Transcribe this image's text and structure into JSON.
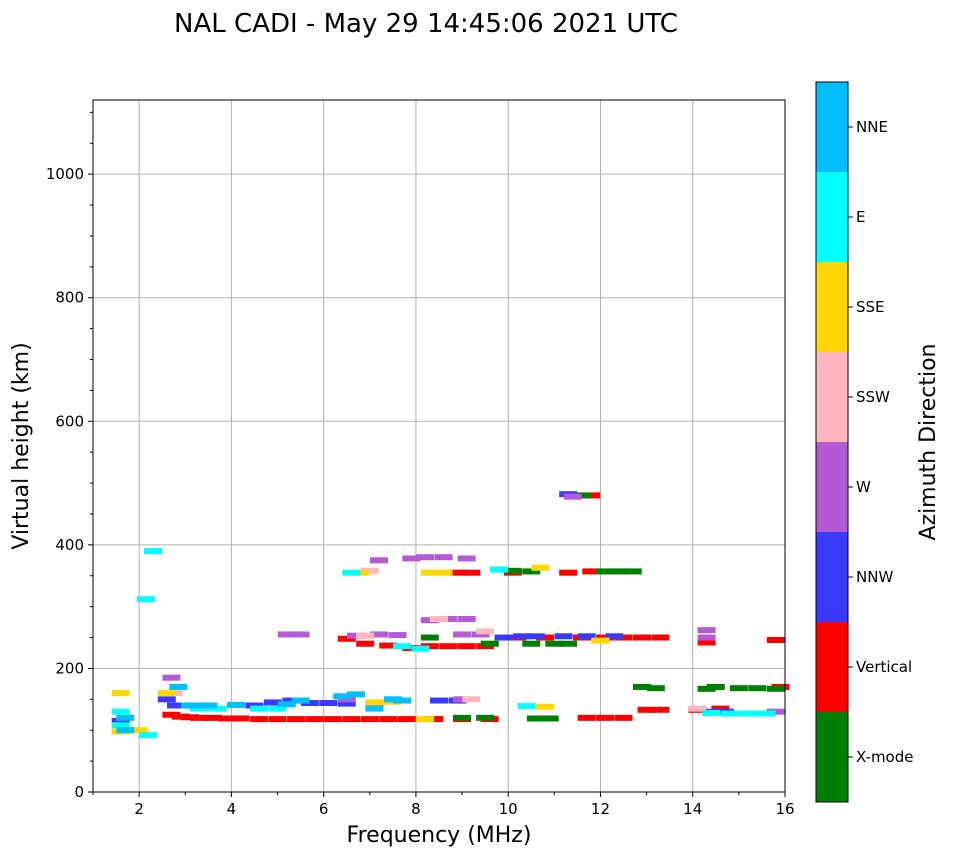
{
  "chart_data": {
    "type": "scatter",
    "title": "NAL CADI - May 29 14:45:06 2021 UTC",
    "xlabel": "Frequency (MHz)",
    "ylabel": "Virtual height (km)",
    "xlim": [
      1,
      16
    ],
    "ylim": [
      0,
      1120
    ],
    "xticks": [
      2,
      4,
      6,
      8,
      10,
      12,
      14,
      16
    ],
    "yticks": [
      0,
      200,
      400,
      600,
      800,
      1000
    ],
    "grid": true,
    "colorbar": {
      "label": "Azimuth Direction",
      "categories": [
        {
          "name": "X-mode",
          "color": "#008000"
        },
        {
          "name": "Vertical",
          "color": "#ff0000"
        },
        {
          "name": "NNW",
          "color": "#3a3aff"
        },
        {
          "name": "W",
          "color": "#b55ad6"
        },
        {
          "name": "SSW",
          "color": "#ffb6c1"
        },
        {
          "name": "SSE",
          "color": "#ffd700"
        },
        {
          "name": "E",
          "color": "#00ffff"
        },
        {
          "name": "NNE",
          "color": "#00bfff"
        }
      ]
    },
    "series": [
      {
        "name": "Vertical",
        "points": [
          [
            2.7,
            125
          ],
          [
            2.9,
            122
          ],
          [
            3.1,
            121
          ],
          [
            3.3,
            120
          ],
          [
            3.6,
            120
          ],
          [
            3.9,
            119
          ],
          [
            4.2,
            119
          ],
          [
            4.6,
            118
          ],
          [
            5.0,
            118
          ],
          [
            5.4,
            118
          ],
          [
            5.8,
            118
          ],
          [
            6.2,
            118
          ],
          [
            6.6,
            118
          ],
          [
            7.0,
            118
          ],
          [
            7.4,
            118
          ],
          [
            7.8,
            118
          ],
          [
            8.4,
            118
          ],
          [
            9.0,
            118
          ],
          [
            9.6,
            118
          ],
          [
            11.7,
            120
          ],
          [
            12.1,
            120
          ],
          [
            12.5,
            120
          ],
          [
            13.0,
            133
          ],
          [
            13.3,
            133
          ],
          [
            14.1,
            133
          ],
          [
            14.6,
            135
          ],
          [
            15.9,
            170
          ],
          [
            6.5,
            248
          ],
          [
            6.9,
            240
          ],
          [
            7.4,
            237
          ],
          [
            7.9,
            233
          ],
          [
            8.3,
            236
          ],
          [
            8.7,
            236
          ],
          [
            9.1,
            236
          ],
          [
            9.5,
            236
          ],
          [
            10.2,
            250
          ],
          [
            10.8,
            250
          ],
          [
            11.6,
            250
          ],
          [
            12.1,
            250
          ],
          [
            12.5,
            250
          ],
          [
            12.9,
            250
          ],
          [
            13.3,
            250
          ],
          [
            14.3,
            242
          ],
          [
            15.8,
            246
          ],
          [
            8.9,
            355
          ],
          [
            9.2,
            355
          ],
          [
            10.1,
            355
          ],
          [
            11.3,
            355
          ],
          [
            11.8,
            357
          ],
          [
            11.8,
            480
          ]
        ]
      },
      {
        "name": "X-mode",
        "points": [
          [
            8.3,
            250
          ],
          [
            9.6,
            240
          ],
          [
            10.5,
            240
          ],
          [
            11.0,
            240
          ],
          [
            11.3,
            240
          ],
          [
            10.1,
            358
          ],
          [
            10.5,
            357
          ],
          [
            12.1,
            357
          ],
          [
            12.4,
            357
          ],
          [
            12.7,
            357
          ],
          [
            11.6,
            480
          ],
          [
            9.0,
            120
          ],
          [
            9.5,
            120
          ],
          [
            10.6,
            119
          ],
          [
            10.9,
            119
          ],
          [
            12.9,
            170
          ],
          [
            13.2,
            168
          ],
          [
            14.3,
            167
          ],
          [
            14.5,
            170
          ],
          [
            15.0,
            168
          ],
          [
            15.4,
            168
          ],
          [
            15.8,
            167
          ]
        ]
      },
      {
        "name": "NNW",
        "points": [
          [
            4.9,
            145
          ],
          [
            5.3,
            148
          ],
          [
            5.7,
            144
          ],
          [
            6.1,
            144
          ],
          [
            6.5,
            143
          ],
          [
            7.1,
            144
          ],
          [
            8.5,
            148
          ],
          [
            8.9,
            148
          ],
          [
            9.9,
            250
          ],
          [
            10.3,
            252
          ],
          [
            10.6,
            252
          ],
          [
            11.2,
            252
          ],
          [
            11.7,
            252
          ],
          [
            12.3,
            252
          ],
          [
            11.3,
            482
          ],
          [
            1.6,
            115
          ],
          [
            2.6,
            150
          ],
          [
            2.8,
            140
          ],
          [
            3.3,
            139
          ],
          [
            4.5,
            140
          ],
          [
            14.4,
            130
          ],
          [
            14.7,
            130
          ]
        ]
      },
      {
        "name": "W",
        "points": [
          [
            7.2,
            375
          ],
          [
            7.9,
            378
          ],
          [
            8.2,
            380
          ],
          [
            8.6,
            380
          ],
          [
            9.1,
            378
          ],
          [
            5.2,
            255
          ],
          [
            5.5,
            255
          ],
          [
            6.7,
            253
          ],
          [
            7.2,
            255
          ],
          [
            7.6,
            254
          ],
          [
            8.3,
            278
          ],
          [
            8.7,
            280
          ],
          [
            9.1,
            280
          ],
          [
            9.0,
            255
          ],
          [
            9.4,
            255
          ],
          [
            14.3,
            262
          ],
          [
            14.3,
            250
          ],
          [
            9.0,
            150
          ],
          [
            6.5,
            150
          ],
          [
            11.4,
            478
          ],
          [
            2.7,
            185
          ],
          [
            15.8,
            130
          ]
        ]
      },
      {
        "name": "SSW",
        "points": [
          [
            6.9,
            253
          ],
          [
            8.5,
            280
          ],
          [
            9.5,
            260
          ],
          [
            9.2,
            150
          ],
          [
            14.1,
            135
          ],
          [
            7.0,
            358
          ],
          [
            2.75,
            160
          ]
        ]
      },
      {
        "name": "SSE",
        "points": [
          [
            1.6,
            160
          ],
          [
            1.6,
            98
          ],
          [
            2.0,
            100
          ],
          [
            2.6,
            160
          ],
          [
            7.1,
            145
          ],
          [
            7.5,
            146
          ],
          [
            8.3,
            355
          ],
          [
            8.6,
            355
          ],
          [
            10.7,
            363
          ],
          [
            10.8,
            138
          ],
          [
            12.0,
            245
          ],
          [
            6.8,
            355
          ],
          [
            8.2,
            118
          ]
        ]
      },
      {
        "name": "E",
        "points": [
          [
            1.6,
            130
          ],
          [
            1.6,
            108
          ],
          [
            2.2,
            92
          ],
          [
            2.3,
            390
          ],
          [
            2.15,
            312
          ],
          [
            3.3,
            135
          ],
          [
            3.7,
            135
          ],
          [
            4.6,
            135
          ],
          [
            5.0,
            135
          ],
          [
            14.4,
            128
          ],
          [
            14.8,
            127
          ],
          [
            15.2,
            127
          ],
          [
            15.6,
            127
          ],
          [
            6.6,
            355
          ],
          [
            7.7,
            236
          ],
          [
            8.1,
            232
          ],
          [
            10.4,
            139
          ],
          [
            9.8,
            360
          ]
        ]
      },
      {
        "name": "NNE",
        "points": [
          [
            1.7,
            120
          ],
          [
            1.7,
            100
          ],
          [
            2.85,
            170
          ],
          [
            3.1,
            140
          ],
          [
            3.5,
            140
          ],
          [
            4.1,
            141
          ],
          [
            5.2,
            142
          ],
          [
            5.5,
            148
          ],
          [
            6.4,
            155
          ],
          [
            6.7,
            158
          ],
          [
            7.1,
            135
          ],
          [
            7.5,
            150
          ],
          [
            7.7,
            148
          ]
        ]
      }
    ]
  }
}
